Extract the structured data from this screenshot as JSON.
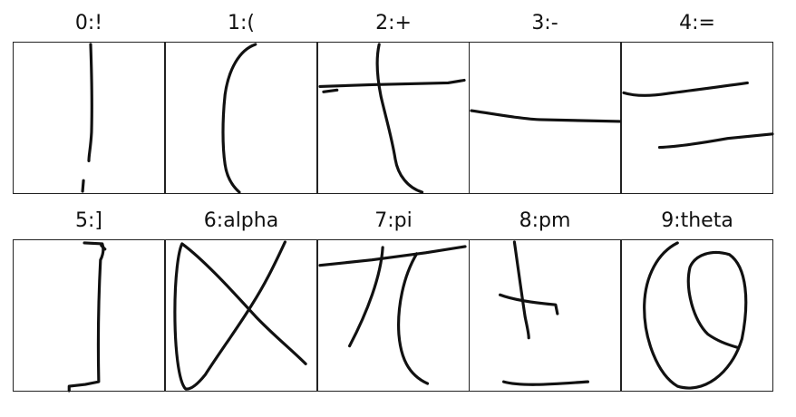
{
  "figure": {
    "panels": [
      {
        "index": 0,
        "label": "0:!",
        "symbol": "!"
      },
      {
        "index": 1,
        "label": "1:(",
        "symbol": "("
      },
      {
        "index": 2,
        "label": "2:+",
        "symbol": "+"
      },
      {
        "index": 3,
        "label": "3:-",
        "symbol": "-"
      },
      {
        "index": 4,
        "label": "4:=",
        "symbol": "="
      },
      {
        "index": 5,
        "label": "5:]",
        "symbol": "]"
      },
      {
        "index": 6,
        "label": "6:alpha",
        "symbol": "alpha"
      },
      {
        "index": 7,
        "label": "7:pi",
        "symbol": "pi"
      },
      {
        "index": 8,
        "label": "8:pm",
        "symbol": "pm"
      },
      {
        "index": 9,
        "label": "9:theta",
        "symbol": "theta"
      }
    ]
  },
  "colors": {
    "stroke": "#111111",
    "border": "#222222",
    "background": "#ffffff"
  }
}
